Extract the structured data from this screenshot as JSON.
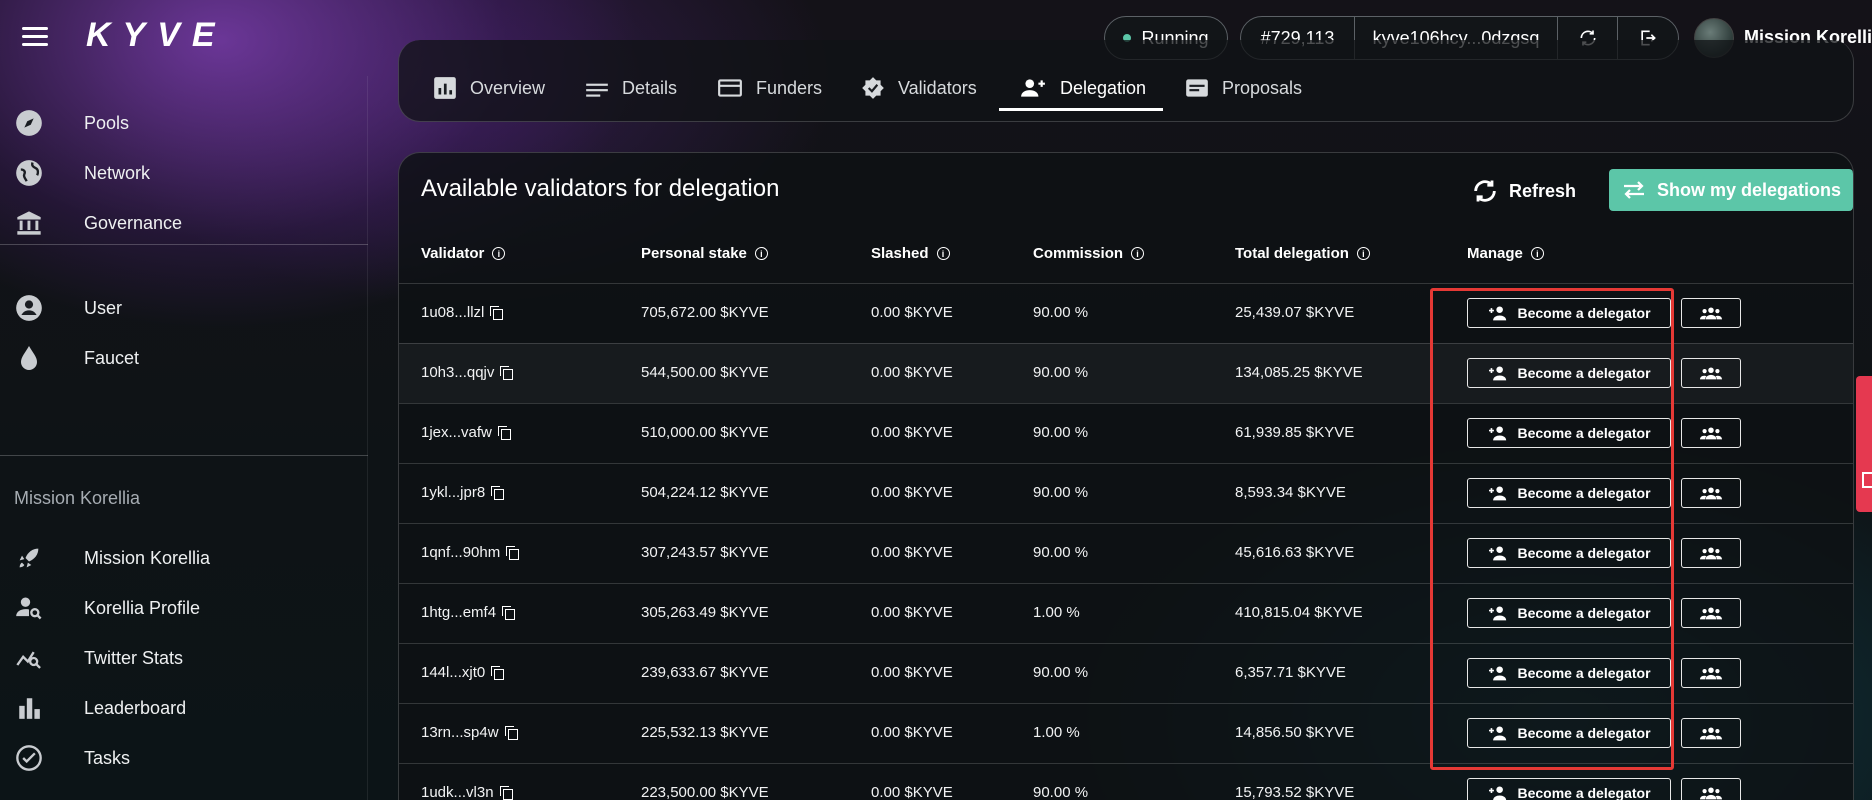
{
  "app": {
    "logo": "KYVE"
  },
  "header": {
    "status": "Running",
    "block": "#729,113",
    "address": "kyve106hcy...0dzgsq",
    "user": "Mission Korellia",
    "icons": [
      "refresh-icon",
      "logout-icon"
    ]
  },
  "sidebar": {
    "items": [
      {
        "label": "Pools",
        "icon": "compass-icon"
      },
      {
        "label": "Network",
        "icon": "globe-icon"
      },
      {
        "label": "Governance",
        "icon": "bank-icon"
      },
      {
        "label": "User",
        "icon": "user-circle-icon"
      },
      {
        "label": "Faucet",
        "icon": "drop-icon"
      }
    ],
    "section": "Mission Korellia",
    "mission_items": [
      {
        "label": "Mission Korellia",
        "icon": "rocket-icon"
      },
      {
        "label": "Korellia Profile",
        "icon": "person-search-icon"
      },
      {
        "label": "Twitter Stats",
        "icon": "chart-search-icon"
      },
      {
        "label": "Leaderboard",
        "icon": "bar-chart-icon"
      },
      {
        "label": "Tasks",
        "icon": "check-circle-icon"
      }
    ]
  },
  "tabs": [
    {
      "label": "Overview",
      "icon": "chart-box-icon"
    },
    {
      "label": "Details",
      "icon": "lines-icon"
    },
    {
      "label": "Funders",
      "icon": "card-icon"
    },
    {
      "label": "Validators",
      "icon": "badge-check-icon"
    },
    {
      "label": "Delegation",
      "icon": "person-add-icon",
      "active": true
    },
    {
      "label": "Proposals",
      "icon": "document-icon"
    }
  ],
  "card": {
    "title": "Available validators for delegation",
    "refresh_label": "Refresh",
    "show_label": "Show my delegations",
    "accent": "#5cc6a8"
  },
  "table": {
    "headers": [
      "Validator",
      "Personal stake",
      "Slashed",
      "Commission",
      "Total delegation",
      "Manage"
    ],
    "action_label": "Become a delegator",
    "rows": [
      {
        "validator": "1u08...llzl",
        "stake": "705,672.00 $KYVE",
        "slashed": "0.00 $KYVE",
        "commission": "90.00 %",
        "total": "25,439.07 $KYVE"
      },
      {
        "validator": "10h3...qqjv",
        "stake": "544,500.00 $KYVE",
        "slashed": "0.00 $KYVE",
        "commission": "90.00 %",
        "total": "134,085.25 $KYVE"
      },
      {
        "validator": "1jex...vafw",
        "stake": "510,000.00 $KYVE",
        "slashed": "0.00 $KYVE",
        "commission": "90.00 %",
        "total": "61,939.85 $KYVE"
      },
      {
        "validator": "1ykl...jpr8",
        "stake": "504,224.12 $KYVE",
        "slashed": "0.00 $KYVE",
        "commission": "90.00 %",
        "total": "8,593.34 $KYVE"
      },
      {
        "validator": "1qnf...90hm",
        "stake": "307,243.57 $KYVE",
        "slashed": "0.00 $KYVE",
        "commission": "90.00 %",
        "total": "45,616.63 $KYVE"
      },
      {
        "validator": "1htg...emf4",
        "stake": "305,263.49 $KYVE",
        "slashed": "0.00 $KYVE",
        "commission": "1.00 %",
        "total": "410,815.04 $KYVE"
      },
      {
        "validator": "144l...xjt0",
        "stake": "239,633.67 $KYVE",
        "slashed": "0.00 $KYVE",
        "commission": "90.00 %",
        "total": "6,357.71 $KYVE"
      },
      {
        "validator": "13rn...sp4w",
        "stake": "225,532.13 $KYVE",
        "slashed": "0.00 $KYVE",
        "commission": "1.00 %",
        "total": "14,856.50 $KYVE"
      },
      {
        "validator": "1udk...vl3n",
        "stake": "223,500.00 $KYVE",
        "slashed": "0.00 $KYVE",
        "commission": "90.00 %",
        "total": "15,793.52 $KYVE"
      }
    ]
  }
}
